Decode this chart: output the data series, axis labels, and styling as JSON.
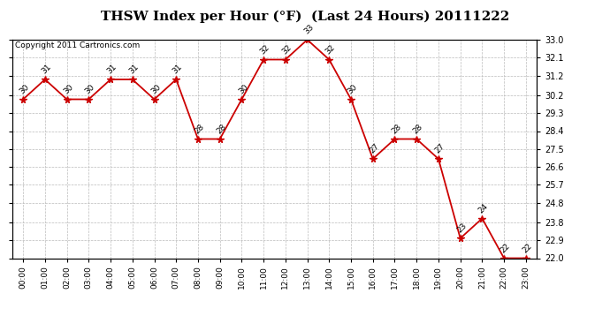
{
  "title": "THSW Index per Hour (°F)  (Last 24 Hours) 20111222",
  "copyright": "Copyright 2011 Cartronics.com",
  "hours": [
    "00:00",
    "01:00",
    "02:00",
    "03:00",
    "04:00",
    "05:00",
    "06:00",
    "07:00",
    "08:00",
    "09:00",
    "10:00",
    "11:00",
    "12:00",
    "13:00",
    "14:00",
    "15:00",
    "16:00",
    "17:00",
    "18:00",
    "19:00",
    "20:00",
    "21:00",
    "22:00",
    "23:00"
  ],
  "values": [
    30,
    31,
    30,
    30,
    31,
    31,
    30,
    31,
    28,
    28,
    30,
    32,
    32,
    33,
    32,
    30,
    27,
    28,
    28,
    27,
    23,
    24,
    22,
    22
  ],
  "ylim_min": 22.0,
  "ylim_max": 33.0,
  "yticks": [
    22.0,
    22.9,
    23.8,
    24.8,
    25.7,
    26.6,
    27.5,
    28.4,
    29.3,
    30.2,
    31.2,
    32.1,
    33.0
  ],
  "line_color": "#cc0000",
  "marker_color": "#cc0000",
  "bg_color": "#ffffff",
  "plot_bg_color": "#ffffff",
  "grid_color": "#bbbbbb",
  "title_fontsize": 11,
  "annotation_fontsize": 6.5,
  "copyright_fontsize": 6.5,
  "tick_fontsize": 7,
  "xtick_fontsize": 6.5
}
